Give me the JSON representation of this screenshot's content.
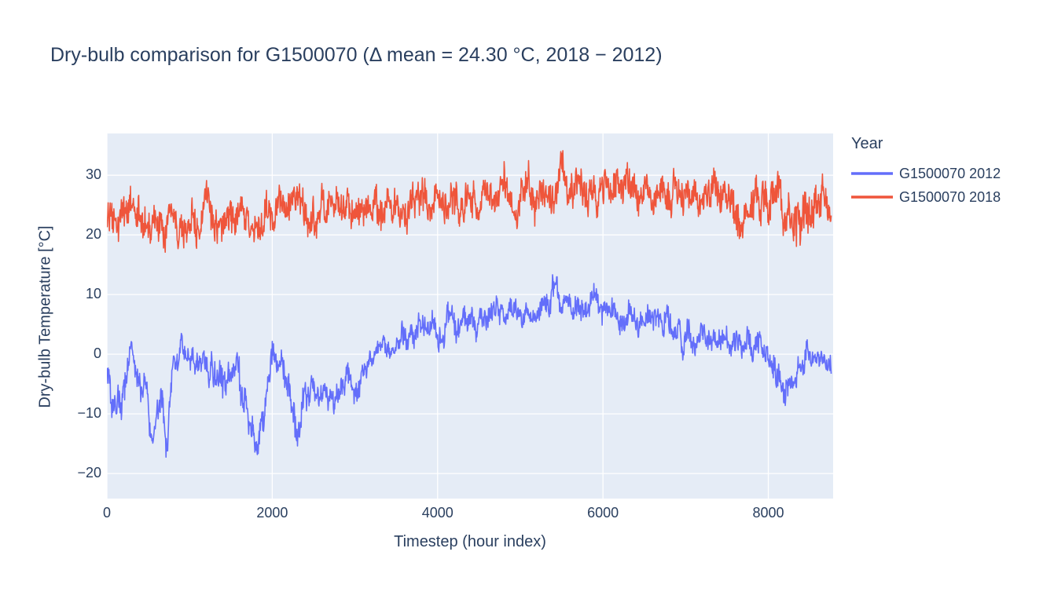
{
  "title": "Dry-bulb comparison for G1500070 (Δ mean = 24.30 °C, 2018 − 2012)",
  "colors": {
    "text": "#2a3f5f",
    "plot_bg": "#e5ecf6",
    "grid": "#ffffff",
    "series_2012": "#636efa",
    "series_2018": "#ef553b"
  },
  "chart_data": {
    "type": "line",
    "title": "Dry-bulb comparison for G1500070 (Δ mean = 24.30 °C, 2018 − 2012)",
    "xlabel": "Timestep (hour index)",
    "ylabel": "Dry-bulb Temperature [°C]",
    "legend_title": "Year",
    "legend_position": "right-top",
    "grid": true,
    "x_range": [
      0,
      8784
    ],
    "y_range": [
      -24.2,
      37.0
    ],
    "x_ticks": [
      0,
      2000,
      4000,
      6000,
      8000
    ],
    "y_ticks": [
      -20,
      -10,
      0,
      10,
      20,
      30
    ],
    "x_points": 8760,
    "noise_step_hours": 5,
    "delta_mean_c": 24.3,
    "series": [
      {
        "name": "G1500070 2012",
        "color": "#636efa",
        "seed": 20121,
        "approx_min": -21,
        "approx_max": 15.5,
        "trend_mean_amp": [
          [
            0,
            -3,
            3
          ],
          [
            120,
            -9,
            4
          ],
          [
            220,
            -7,
            4
          ],
          [
            300,
            1.5,
            1.5
          ],
          [
            380,
            -2,
            3
          ],
          [
            480,
            -7,
            4
          ],
          [
            560,
            -12,
            3
          ],
          [
            640,
            -9,
            4
          ],
          [
            730,
            -17,
            4
          ],
          [
            800,
            0,
            3
          ],
          [
            900,
            1,
            2
          ],
          [
            1000,
            0.5,
            2.5
          ],
          [
            1100,
            0,
            3
          ],
          [
            1200,
            -1,
            3
          ],
          [
            1300,
            -3,
            4
          ],
          [
            1400,
            -6,
            4
          ],
          [
            1500,
            -1,
            3
          ],
          [
            1600,
            -4,
            4
          ],
          [
            1700,
            -10,
            4
          ],
          [
            1800,
            -13,
            3
          ],
          [
            1900,
            -10,
            4
          ],
          [
            2000,
            -1,
            3
          ],
          [
            2100,
            -2,
            3
          ],
          [
            2200,
            -8,
            4
          ],
          [
            2290,
            -17,
            4
          ],
          [
            2380,
            -6,
            4
          ],
          [
            2500,
            -4,
            3
          ],
          [
            2600,
            -7,
            3
          ],
          [
            2700,
            -5,
            3
          ],
          [
            2800,
            -6,
            3
          ],
          [
            2900,
            -4,
            3
          ],
          [
            3000,
            -5,
            3
          ],
          [
            3100,
            -3,
            2.5
          ],
          [
            3200,
            -1,
            2
          ],
          [
            3300,
            0.5,
            2
          ],
          [
            3400,
            1,
            2.5
          ],
          [
            3500,
            2,
            3
          ],
          [
            3600,
            2.5,
            3
          ],
          [
            3700,
            3.5,
            3
          ],
          [
            3800,
            4,
            3
          ],
          [
            3900,
            4.5,
            3
          ],
          [
            4000,
            5,
            3
          ],
          [
            4200,
            5.5,
            3
          ],
          [
            4400,
            6,
            3
          ],
          [
            4600,
            6,
            3.5
          ],
          [
            4800,
            6.5,
            2.5
          ],
          [
            5000,
            7,
            2.5
          ],
          [
            5200,
            7.5,
            2.5
          ],
          [
            5350,
            8,
            3
          ],
          [
            5420,
            11.5,
            3.5
          ],
          [
            5500,
            8.5,
            2.5
          ],
          [
            5700,
            8.5,
            2.5
          ],
          [
            5900,
            8,
            3
          ],
          [
            6100,
            7,
            3
          ],
          [
            6300,
            6,
            3
          ],
          [
            6500,
            7,
            2.5
          ],
          [
            6700,
            6.5,
            2.5
          ],
          [
            6850,
            4,
            3.5
          ],
          [
            6950,
            2,
            3.5
          ],
          [
            7100,
            2.5,
            3
          ],
          [
            7250,
            3.5,
            2.5
          ],
          [
            7400,
            2,
            3
          ],
          [
            7550,
            2.5,
            3
          ],
          [
            7700,
            0.5,
            3
          ],
          [
            7850,
            1.5,
            3
          ],
          [
            8000,
            0,
            3
          ],
          [
            8100,
            -3,
            4
          ],
          [
            8200,
            -7,
            3.5
          ],
          [
            8300,
            -5,
            3
          ],
          [
            8400,
            -1,
            3
          ],
          [
            8500,
            0,
            2.5
          ],
          [
            8600,
            -1.5,
            2.5
          ],
          [
            8760,
            -2,
            2.5
          ]
        ]
      },
      {
        "name": "G1500070 2018",
        "color": "#ef553b",
        "seed": 20183,
        "approx_min": 14,
        "approx_max": 33.5,
        "trend_mean_amp": [
          [
            0,
            23,
            4
          ],
          [
            150,
            22.5,
            4.5
          ],
          [
            300,
            23,
            4
          ],
          [
            450,
            22.5,
            4.5
          ],
          [
            600,
            23,
            4
          ],
          [
            750,
            23.5,
            4
          ],
          [
            900,
            23,
            4.5
          ],
          [
            1050,
            23.5,
            4
          ],
          [
            1200,
            24,
            4
          ],
          [
            1350,
            23.5,
            4
          ],
          [
            1500,
            23,
            4.5
          ],
          [
            1650,
            23.5,
            4
          ],
          [
            1800,
            23,
            4.5
          ],
          [
            1950,
            23.5,
            4
          ],
          [
            2100,
            24,
            4
          ],
          [
            2250,
            23.5,
            4
          ],
          [
            2400,
            24,
            4
          ],
          [
            2550,
            23.5,
            4.5
          ],
          [
            2700,
            24,
            4
          ],
          [
            2850,
            23.5,
            4
          ],
          [
            3000,
            24,
            4
          ],
          [
            3150,
            24.5,
            4
          ],
          [
            3300,
            24,
            4
          ],
          [
            3450,
            24.5,
            4
          ],
          [
            3600,
            25,
            4
          ],
          [
            3750,
            25.5,
            4
          ],
          [
            3900,
            26,
            4
          ],
          [
            4050,
            26,
            4
          ],
          [
            4200,
            26.5,
            4
          ],
          [
            4350,
            26,
            4
          ],
          [
            4500,
            26.5,
            4
          ],
          [
            4650,
            26.5,
            4
          ],
          [
            4800,
            27,
            4
          ],
          [
            4950,
            26.5,
            4
          ],
          [
            5100,
            27,
            4
          ],
          [
            5250,
            27,
            4
          ],
          [
            5400,
            27.5,
            4.5
          ],
          [
            5550,
            28,
            4.5
          ],
          [
            5700,
            27,
            4
          ],
          [
            5850,
            27.5,
            4
          ],
          [
            6000,
            27,
            4
          ],
          [
            6150,
            27.5,
            4
          ],
          [
            6300,
            28,
            4.5
          ],
          [
            6450,
            27,
            4
          ],
          [
            6600,
            27,
            4
          ],
          [
            6750,
            26.5,
            4
          ],
          [
            6900,
            26.5,
            4
          ],
          [
            7050,
            26,
            4
          ],
          [
            7200,
            26.5,
            4
          ],
          [
            7350,
            26,
            4
          ],
          [
            7500,
            26,
            4.5
          ],
          [
            7650,
            25.5,
            4.5
          ],
          [
            7800,
            25,
            5
          ],
          [
            7950,
            25,
            5
          ],
          [
            8100,
            24.5,
            5
          ],
          [
            8250,
            24.5,
            5
          ],
          [
            8400,
            24,
            5.5
          ],
          [
            8550,
            24.5,
            4.5
          ],
          [
            8700,
            24,
            4
          ],
          [
            8760,
            24,
            4
          ]
        ]
      }
    ]
  }
}
